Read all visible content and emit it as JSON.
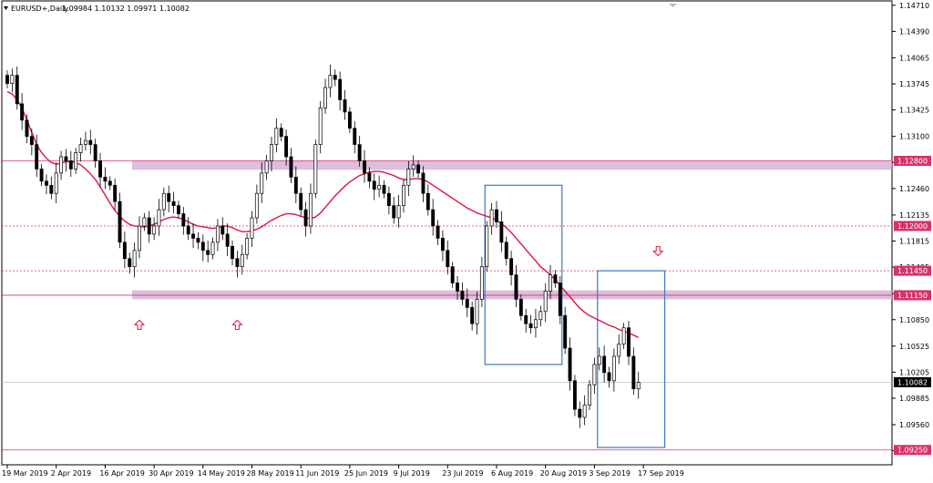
{
  "header": {
    "symbol_label": "EURUSD+,Daily",
    "ohlc_label": "1.09984 1.10132 1.09971 1.10082"
  },
  "colors": {
    "ma": "#e0143c",
    "zone": "#cfa9cf",
    "resistance": "#d6336b",
    "box": "#3b78c6",
    "arrow": "#e0143c",
    "candle": "#000000",
    "price_tag": "#d6336b",
    "current_tag": "#000000",
    "grid": "#b0b0b0"
  },
  "chart_data": {
    "type": "candlestick",
    "title": "EURUSD+,Daily",
    "ylim": [
      1.0918,
      1.1473
    ],
    "y_ticks": [
      "1.14710",
      "1.14390",
      "1.14065",
      "1.13745",
      "1.13425",
      "1.13100",
      "1.12780",
      "1.12460",
      "1.12135",
      "1.11815",
      "1.11495",
      "1.11170",
      "1.10850",
      "1.10525",
      "1.10205",
      "1.09885",
      "1.09560",
      "1.09240"
    ],
    "x_ticks": [
      {
        "i": 0,
        "label": "19 Mar 2019"
      },
      {
        "i": 10,
        "label": "2 Apr 2019"
      },
      {
        "i": 20,
        "label": "16 Apr 2019"
      },
      {
        "i": 30,
        "label": "30 Apr 2019"
      },
      {
        "i": 40,
        "label": "14 May 2019"
      },
      {
        "i": 50,
        "label": "28 May 2019"
      },
      {
        "i": 60,
        "label": "11 Jun 2019"
      },
      {
        "i": 70,
        "label": "25 Jun 2019"
      },
      {
        "i": 80,
        "label": "9 Jul 2019"
      },
      {
        "i": 90,
        "label": "23 Jul 2019"
      },
      {
        "i": 100,
        "label": "6 Aug 2019"
      },
      {
        "i": 110,
        "label": "20 Aug 2019"
      },
      {
        "i": 120,
        "label": "3 Sep 2019"
      },
      {
        "i": 130,
        "label": "17 Sep 2019"
      }
    ],
    "candles_close": [
      1.1375,
      1.1385,
      1.135,
      1.133,
      1.131,
      1.13,
      1.127,
      1.1255,
      1.125,
      1.124,
      1.1265,
      1.1285,
      1.128,
      1.127,
      1.129,
      1.13,
      1.1305,
      1.13,
      1.128,
      1.126,
      1.1255,
      1.125,
      1.123,
      1.118,
      1.116,
      1.115,
      1.117,
      1.12,
      1.121,
      1.119,
      1.12,
      1.122,
      1.124,
      1.123,
      1.1225,
      1.1215,
      1.12,
      1.119,
      1.1185,
      1.118,
      1.117,
      1.1165,
      1.118,
      1.12,
      1.119,
      1.1175,
      1.116,
      1.115,
      1.1165,
      1.1185,
      1.121,
      1.124,
      1.1265,
      1.128,
      1.13,
      1.132,
      1.131,
      1.1285,
      1.126,
      1.124,
      1.122,
      1.12,
      1.124,
      1.13,
      1.1345,
      1.137,
      1.1385,
      1.138,
      1.1355,
      1.134,
      1.132,
      1.13,
      1.128,
      1.1265,
      1.1255,
      1.1245,
      1.125,
      1.124,
      1.1225,
      1.121,
      1.1225,
      1.125,
      1.127,
      1.1275,
      1.1265,
      1.124,
      1.122,
      1.12,
      1.1185,
      1.117,
      1.115,
      1.113,
      1.112,
      1.111,
      1.11,
      1.108,
      1.111,
      1.115,
      1.12,
      1.122,
      1.1205,
      1.118,
      1.116,
      1.114,
      1.111,
      1.109,
      1.108,
      1.1075,
      1.1085,
      1.1095,
      1.112,
      1.114,
      1.113,
      1.109,
      1.105,
      1.101,
      1.0975,
      1.0965,
      1.098,
      1.1005,
      1.103,
      1.104,
      1.102,
      1.101,
      1.104,
      1.1055,
      1.1075,
      1.104,
      1.1,
      1.1008
    ],
    "ma_values": [
      1.1365,
      1.1362,
      1.1355,
      1.1345,
      1.133,
      1.1315,
      1.13,
      1.129,
      1.1283,
      1.1278,
      1.1276,
      1.1277,
      1.1279,
      1.1279,
      1.1278,
      1.1275,
      1.127,
      1.1264,
      1.1257,
      1.1248,
      1.1238,
      1.1228,
      1.1219,
      1.1212,
      1.1206,
      1.1202,
      1.12,
      1.1199,
      1.1199,
      1.12,
      1.1202,
      1.1205,
      1.1208,
      1.121,
      1.1211,
      1.121,
      1.1208,
      1.1205,
      1.1202,
      1.12,
      1.1199,
      1.1198,
      1.1197,
      1.1198,
      1.12,
      1.12,
      1.1198,
      1.1195,
      1.1193,
      1.1193,
      1.1194,
      1.1196,
      1.1199,
      1.1203,
      1.1207,
      1.121,
      1.1213,
      1.1215,
      1.1215,
      1.1214,
      1.1212,
      1.121,
      1.1209,
      1.1211,
      1.1216,
      1.1223,
      1.123,
      1.1237,
      1.1243,
      1.1249,
      1.1254,
      1.1258,
      1.1262,
      1.1264,
      1.1266,
      1.1267,
      1.1267,
      1.1266,
      1.1264,
      1.1262,
      1.1259,
      1.1257,
      1.1257,
      1.1258,
      1.1258,
      1.1257,
      1.1254,
      1.125,
      1.1246,
      1.1242,
      1.1238,
      1.1234,
      1.123,
      1.1226,
      1.1222,
      1.1219,
      1.1216,
      1.1214,
      1.1212,
      1.121,
      1.1207,
      1.1203,
      1.1198,
      1.1192,
      1.1185,
      1.1178,
      1.1171,
      1.1164,
      1.1157,
      1.115,
      1.1145,
      1.114,
      1.1134,
      1.1127,
      1.112,
      1.1113,
      1.1106,
      1.1099,
      1.1094,
      1.109,
      1.1087,
      1.1084,
      1.1081,
      1.1078,
      1.1076,
      1.1073,
      1.1071,
      1.1068,
      1.1066,
      1.1063
    ],
    "zones": [
      {
        "low": 1.1269,
        "high": 1.128
      },
      {
        "low": 1.111,
        "high": 1.1121
      }
    ],
    "hlines": [
      {
        "value": 1.128,
        "style": "solid",
        "label": "1.12800"
      },
      {
        "value": 1.12,
        "style": "dashed",
        "label": "1.12000"
      },
      {
        "value": 1.1145,
        "style": "dashed",
        "label": "1.11450"
      },
      {
        "value": 1.1115,
        "style": "solid",
        "label": "1.11150"
      },
      {
        "value": 1.0925,
        "style": "solid",
        "label": "1.09250"
      }
    ],
    "current_price": {
      "value": 1.10082,
      "label": "1.10082"
    },
    "boxes": [
      {
        "i0": 98,
        "i1": 113,
        "high": 1.125,
        "low": 1.103
      },
      {
        "i0": 121,
        "i1": 134,
        "high": 1.1145,
        "low": 1.0928
      }
    ],
    "arrows": [
      {
        "i": 27,
        "dir": "up",
        "value": 1.11
      },
      {
        "i": 47,
        "dir": "up",
        "value": 1.11
      },
      {
        "i": 133,
        "dir": "down",
        "value": 1.115
      }
    ]
  }
}
